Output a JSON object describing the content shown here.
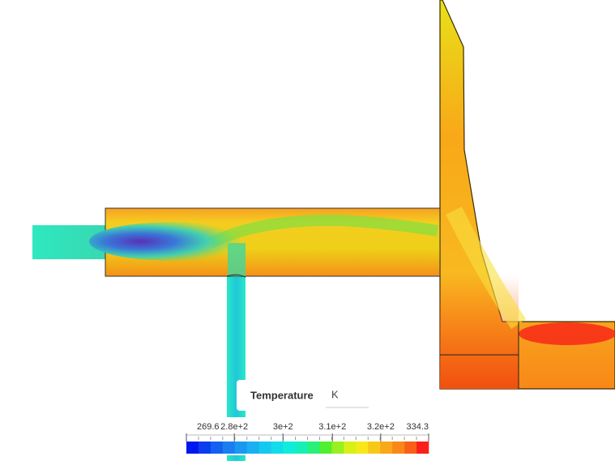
{
  "legend": {
    "title": "Temperature",
    "unit": "K",
    "range": [
      269.6,
      334.3
    ],
    "ticks": [
      {
        "value": 269.6,
        "label": "269.6"
      },
      {
        "value": 282.4,
        "label": "2.8e+2"
      },
      {
        "value": 295.4,
        "label": "3e+2"
      },
      {
        "value": 308.6,
        "label": "3.1e+2"
      },
      {
        "value": 321.5,
        "label": "3.2e+2"
      },
      {
        "value": 334.3,
        "label": "334.3"
      }
    ],
    "colors": [
      "#0018f0",
      "#0a3cf0",
      "#1460f0",
      "#1a7ef0",
      "#1a98f0",
      "#18b0f0",
      "#14c8ee",
      "#10dcea",
      "#10ecdc",
      "#14f0b8",
      "#28f078",
      "#50f030",
      "#98f020",
      "#d8f018",
      "#f8e818",
      "#f8c818",
      "#f8a818",
      "#f88818",
      "#f86018",
      "#f82018"
    ]
  }
}
